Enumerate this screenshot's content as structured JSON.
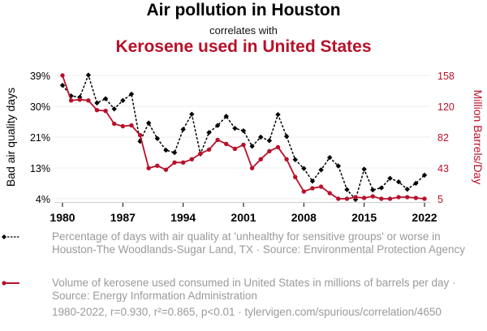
{
  "titles": {
    "main": "Air pollution in Houston",
    "sub": "correlates with",
    "second": "Kerosene used in United States"
  },
  "colors": {
    "series1": "#000000",
    "series2": "#b8112a",
    "grid": "#eeeeee",
    "muted_text": "#9a9a9a"
  },
  "legend": {
    "series1": "Percentage of days with air quality at 'unhealthy for sensitive groups' or worse in Houston-The Woodlands-Sugar Land, TX · Source: Environmental Protection Agency",
    "series2": "Volume of kerosene used consumed in United States in millions of barrels per day · Source: Energy Information Administration"
  },
  "footer": "1980-2022, r=0.930, r²=0.865, p<0.01 · tylervigen.com/spurious/correlation/4650",
  "chart_data": {
    "type": "line",
    "title": "Air pollution in Houston correlates with Kerosene used in United States",
    "xlabel": "",
    "ylabel": "Bad air quality days",
    "ylabel_right": "Million Barrels/Day",
    "x": [
      1980,
      1981,
      1982,
      1983,
      1984,
      1985,
      1986,
      1987,
      1988,
      1989,
      1990,
      1991,
      1992,
      1993,
      1994,
      1995,
      1996,
      1997,
      1998,
      1999,
      2000,
      2001,
      2002,
      2003,
      2004,
      2005,
      2006,
      2007,
      2008,
      2009,
      2010,
      2011,
      2012,
      2013,
      2014,
      2015,
      2016,
      2017,
      2018,
      2019,
      2020,
      2021,
      2022
    ],
    "x_ticks": [
      "1980",
      "1987",
      "1994",
      "2001",
      "2008",
      "2015",
      "2022"
    ],
    "xlim": [
      1980,
      2022
    ],
    "ylim": [
      4,
      39
    ],
    "ylim_right": [
      5,
      158
    ],
    "y_ticks_left": [
      "39%",
      "30%",
      "21%",
      "13%",
      "4%"
    ],
    "y_ticks_right": [
      "158",
      "120",
      "82",
      "43",
      "5"
    ],
    "grid": true,
    "legend_position": "bottom",
    "series": [
      {
        "name": "Percentage of days with air quality at 'unhealthy for sensitive groups' or worse in Houston-The Woodlands-Sugar Land, TX",
        "axis": "left",
        "style": "dashed",
        "marker": "diamond",
        "values": [
          36.2,
          33.2,
          32.8,
          39.1,
          31.2,
          32.4,
          29.5,
          31.9,
          33.7,
          20.3,
          25.5,
          21.1,
          17.8,
          17.1,
          23.7,
          28.0,
          16.7,
          22.8,
          24.8,
          27.4,
          24.0,
          23.3,
          18.9,
          21.5,
          20.5,
          27.9,
          21.7,
          15.1,
          12.6,
          9.0,
          12.2,
          15.7,
          13.3,
          6.6,
          3.8,
          12.4,
          6.5,
          7.1,
          9.8,
          8.8,
          6.7,
          8.4,
          10.7
        ]
      },
      {
        "name": "Volume of kerosene used consumed in United States in millions of barrels per day",
        "axis": "right",
        "style": "solid",
        "marker": "circle",
        "values": [
          158,
          127,
          128,
          127,
          115,
          114,
          98,
          95,
          96,
          84,
          43,
          46,
          41,
          50,
          50,
          54,
          61,
          66,
          78,
          73,
          67,
          72,
          43,
          54,
          64,
          69,
          54,
          32,
          14,
          18,
          20,
          12,
          5,
          5,
          7,
          6,
          8,
          5,
          5,
          7,
          7,
          6,
          5
        ]
      }
    ]
  }
}
